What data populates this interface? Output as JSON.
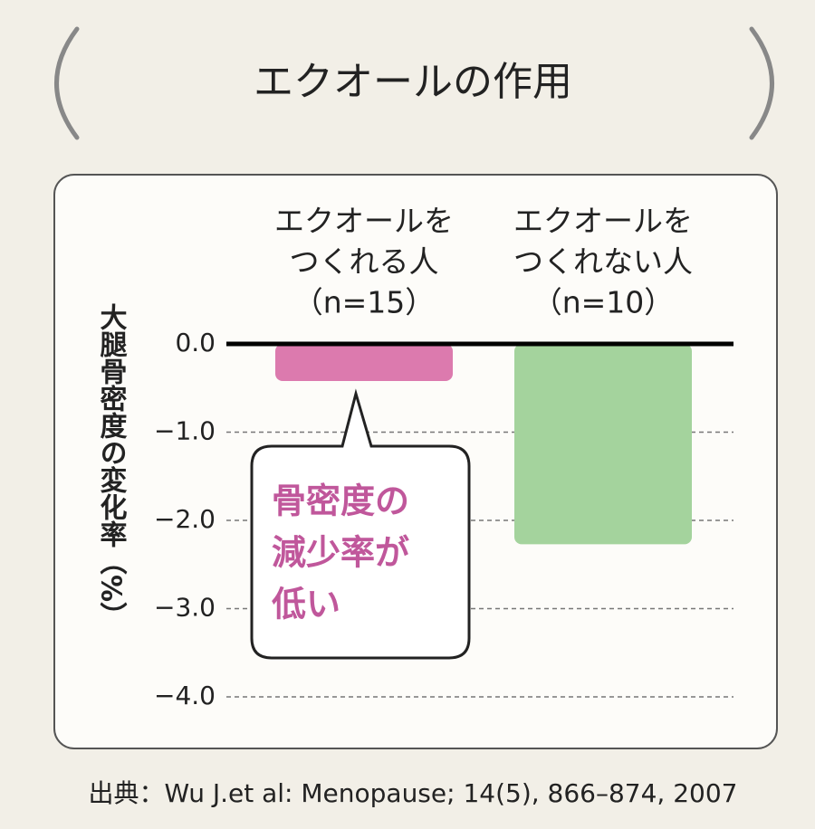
{
  "chart_data": {
    "type": "bar",
    "title": "エクオールの作用",
    "y_label": "大腿骨密度の変化率（%）",
    "categories": [
      [
        "エクオールを",
        "つくれる人",
        "（n=15）"
      ],
      [
        "エクオールを",
        "つくれない人",
        "（n=10）"
      ]
    ],
    "series": [
      {
        "colors": [
          "#dc7aae",
          "#a4d39d"
        ],
        "values": [
          -0.42,
          -2.27
        ]
      }
    ],
    "ylim": [
      -4.0,
      0
    ],
    "yticks": [
      {
        "value": 0,
        "label": "0.0"
      },
      {
        "value": -1,
        "label": "−1.0"
      },
      {
        "value": -2,
        "label": "−2.0"
      },
      {
        "value": -3,
        "label": "−3.0"
      },
      {
        "value": -4,
        "label": "−4.0"
      }
    ],
    "grid": true,
    "annotation": [
      "骨密度の",
      "減少率が",
      "低い"
    ],
    "source": "出典：Wu J.et al: Menopause; 14(5), 866–874, 2007"
  }
}
